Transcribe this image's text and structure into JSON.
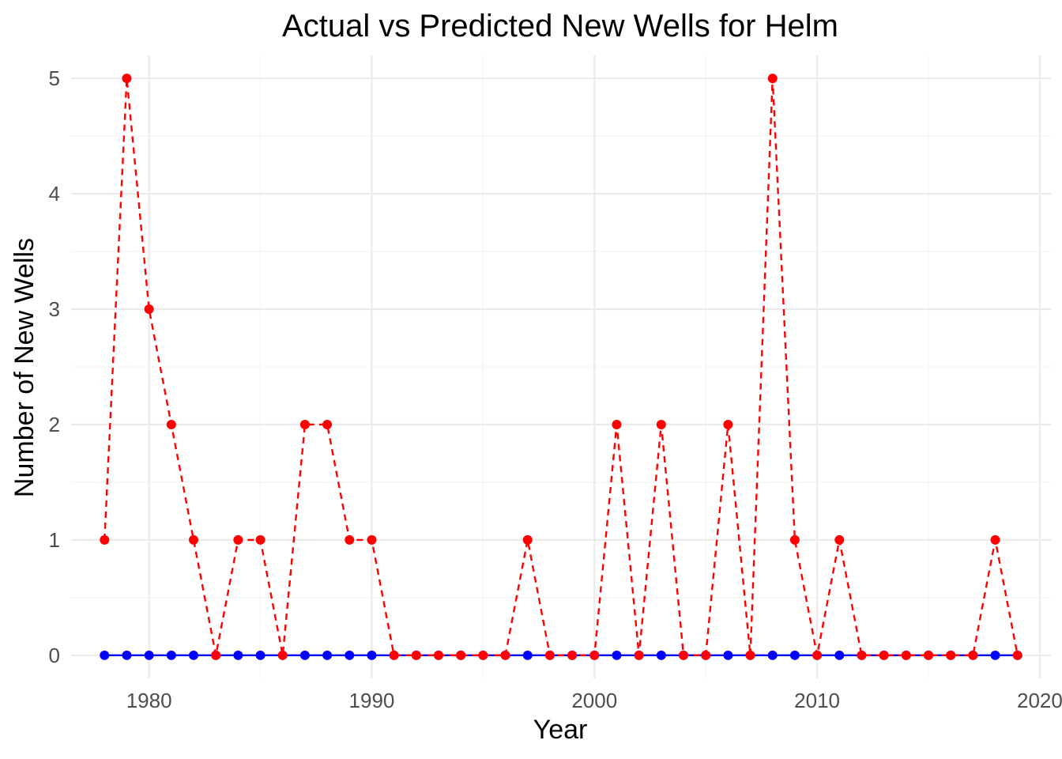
{
  "chart_data": {
    "type": "line",
    "title": "Actual vs Predicted New Wells for Helm",
    "xlabel": "Year",
    "ylabel": "Number of New Wells",
    "xlim": [
      1976.5,
      2020.5
    ],
    "ylim": [
      -0.2,
      5.2
    ],
    "x_ticks": [
      1980,
      1990,
      2000,
      2010,
      2020
    ],
    "y_ticks": [
      0,
      1,
      2,
      3,
      4,
      5
    ],
    "grid": true,
    "legend": "none",
    "x": [
      1978,
      1979,
      1980,
      1981,
      1982,
      1983,
      1984,
      1985,
      1986,
      1987,
      1988,
      1989,
      1990,
      1991,
      1992,
      1993,
      1994,
      1995,
      1996,
      1997,
      1998,
      1999,
      2000,
      2001,
      2002,
      2003,
      2004,
      2005,
      2006,
      2007,
      2008,
      2009,
      2010,
      2011,
      2012,
      2013,
      2014,
      2015,
      2016,
      2017,
      2018,
      2019
    ],
    "series": [
      {
        "color": "#0000ff",
        "line_style": "solid",
        "values": [
          0,
          0,
          0,
          0,
          0,
          0,
          0,
          0,
          0,
          0,
          0,
          0,
          0,
          0,
          0,
          0,
          0,
          0,
          0,
          0,
          0,
          0,
          0,
          0,
          0,
          0,
          0,
          0,
          0,
          0,
          0,
          0,
          0,
          0,
          0,
          0,
          0,
          0,
          0,
          0,
          0,
          0
        ]
      },
      {
        "color": "#ff0000",
        "line_style": "dashed",
        "values": [
          1,
          5,
          3,
          2,
          1,
          0,
          1,
          1,
          0,
          2,
          2,
          1,
          1,
          0,
          0,
          0,
          0,
          0,
          0,
          1,
          0,
          0,
          0,
          2,
          0,
          2,
          0,
          0,
          2,
          0,
          5,
          1,
          0,
          1,
          0,
          0,
          0,
          0,
          0,
          0,
          1,
          0
        ]
      }
    ]
  }
}
